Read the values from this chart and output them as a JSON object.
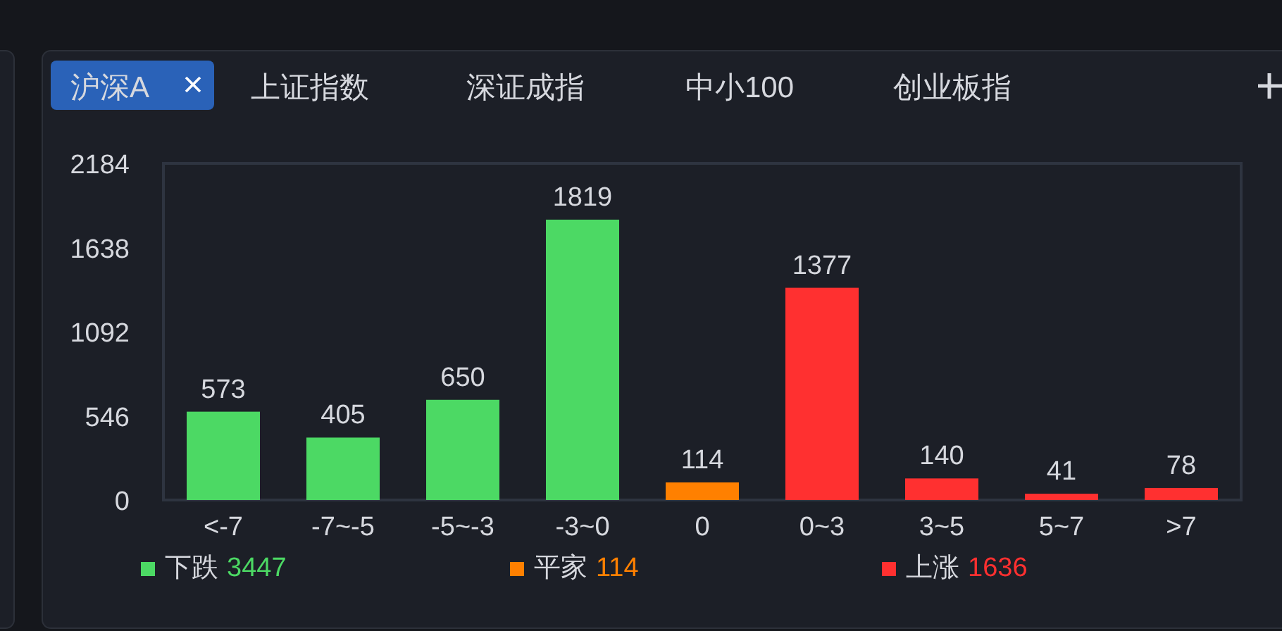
{
  "chart_data": {
    "type": "bar",
    "stacked": true,
    "categories": [
      "<-7",
      "-7~-5",
      "-5~-3",
      "-3~0",
      "0",
      "0~3",
      "3~5",
      "5~7",
      ">7"
    ],
    "series": [
      {
        "name": "下跌 3447",
        "color": "#4cd964",
        "values": [
          573,
          405,
          650,
          1819,
          null,
          null,
          null,
          null,
          null
        ]
      },
      {
        "name": "平家 114",
        "color": "#ff8000",
        "values": [
          null,
          null,
          null,
          null,
          114,
          null,
          null,
          null,
          null
        ]
      },
      {
        "name": "上涨 1636",
        "color": "#ff3030",
        "values": [
          null,
          null,
          null,
          null,
          null,
          1377,
          140,
          41,
          78
        ]
      }
    ],
    "ylim": [
      0,
      2184
    ],
    "yticks": [
      0,
      546,
      1092,
      1638,
      2184
    ],
    "data_labels": true,
    "grid": false,
    "legend": "bottom",
    "annotations": [
      "沪深A",
      "上证指数",
      "深证成指",
      "中小100",
      "创业板指"
    ]
  }
}
